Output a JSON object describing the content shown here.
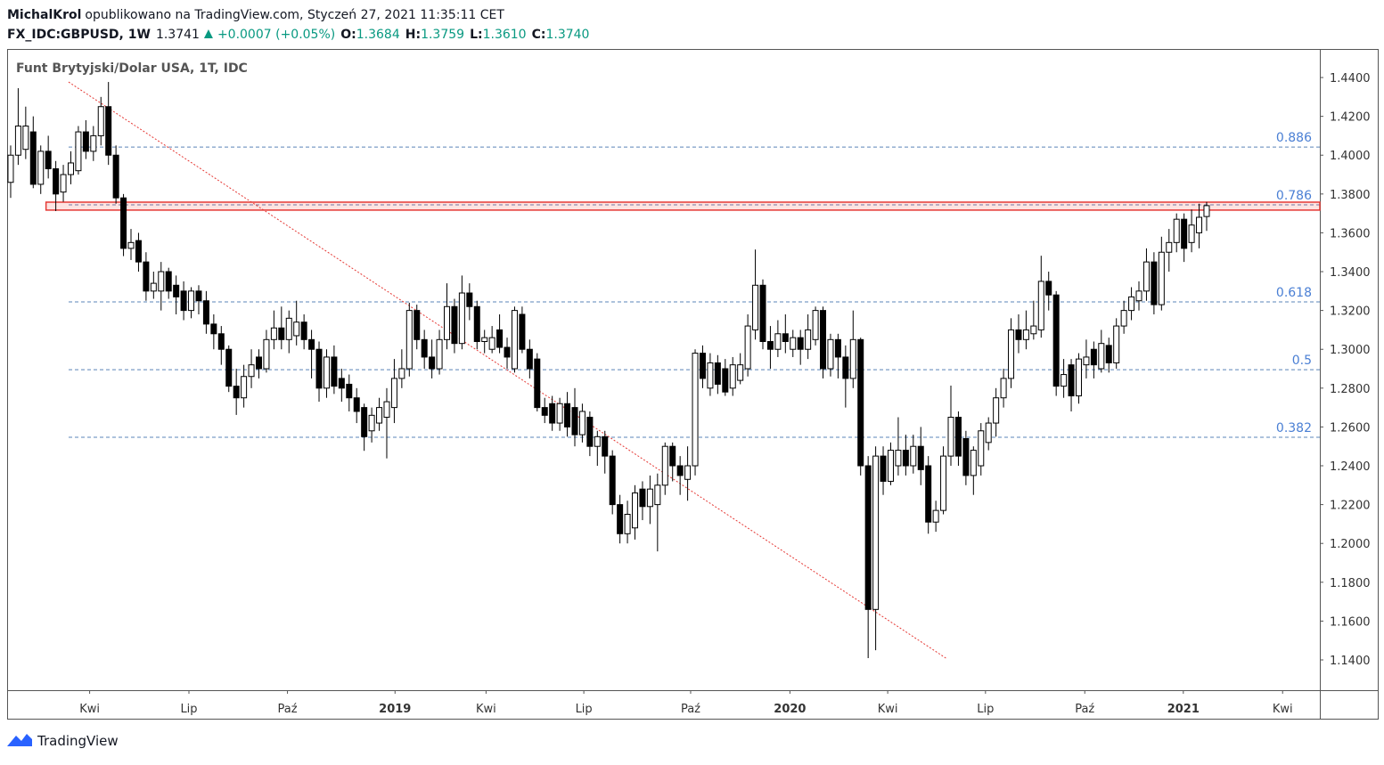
{
  "header": {
    "author": "MichalKrol",
    "published": "opublikowano na TradingView.com, Styczeń 27, 2021 11:35:11 CET",
    "symbol": "FX_IDC:GBPUSD, 1W",
    "last": "1.3741",
    "change": "+0.0007 (+0.05%)",
    "open_label": "O:",
    "open": "1.3684",
    "high_label": "H:",
    "high": "1.3759",
    "low_label": "L:",
    "low": "1.3610",
    "close_label": "C:",
    "close": "1.3740"
  },
  "footer": {
    "brand": "TradingView"
  },
  "chart_data": {
    "type": "candlestick",
    "title": "Funt Brytyjski/Dolar USA, 1T, IDC",
    "xlim": [
      -0.47,
      174.05
    ],
    "ylim": [
      1.1244,
      1.4547
    ],
    "xticks": [
      {
        "value": 10.5,
        "label": "Kwi"
      },
      {
        "value": 23.7,
        "label": "Lip"
      },
      {
        "value": 36.8,
        "label": "Paź"
      },
      {
        "value": 51.1,
        "label": "2019"
      },
      {
        "value": 63.2,
        "label": "Kwi"
      },
      {
        "value": 76.2,
        "label": "Lip"
      },
      {
        "value": 90.4,
        "label": "Paź"
      },
      {
        "value": 103.6,
        "label": "2020"
      },
      {
        "value": 116.6,
        "label": "Kwi"
      },
      {
        "value": 129.6,
        "label": "Lip"
      },
      {
        "value": 142.8,
        "label": "Paź"
      },
      {
        "value": 155.9,
        "label": "2021"
      },
      {
        "value": 169.1,
        "label": "Kwi"
      }
    ],
    "yticks": [
      {
        "value": 1.14,
        "label": "1.1400"
      },
      {
        "value": 1.16,
        "label": "1.1600"
      },
      {
        "value": 1.18,
        "label": "1.1800"
      },
      {
        "value": 1.2,
        "label": "1.2000"
      },
      {
        "value": 1.22,
        "label": "1.2200"
      },
      {
        "value": 1.24,
        "label": "1.2400"
      },
      {
        "value": 1.26,
        "label": "1.2600"
      },
      {
        "value": 1.28,
        "label": "1.2800"
      },
      {
        "value": 1.3,
        "label": "1.3000"
      },
      {
        "value": 1.32,
        "label": "1.3200"
      },
      {
        "value": 1.34,
        "label": "1.3400"
      },
      {
        "value": 1.36,
        "label": "1.3600"
      },
      {
        "value": 1.38,
        "label": "1.3800"
      },
      {
        "value": 1.4,
        "label": "1.4000"
      },
      {
        "value": 1.42,
        "label": "1.4200"
      },
      {
        "value": 1.44,
        "label": "1.4400"
      }
    ],
    "up_color": "#ffffff",
    "down_color": "#000000",
    "fib_levels": [
      {
        "ratio": "0.886",
        "price": 1.4042
      },
      {
        "ratio": "0.786",
        "price": 1.3744
      },
      {
        "ratio": "0.618",
        "price": 1.3244
      },
      {
        "ratio": "0.5",
        "price": 1.2895
      },
      {
        "ratio": "0.382",
        "price": 1.2547
      }
    ],
    "zone": {
      "x_start": 4.7,
      "top": 1.3758,
      "bottom": 1.3717
    },
    "trendline": {
      "x": [
        7.7,
        124.5
      ],
      "y": [
        1.4377,
        1.1405
      ]
    },
    "ohlc": [
      [
        1.386,
        1.405,
        1.378,
        1.4
      ],
      [
        1.4,
        1.4345,
        1.395,
        1.415
      ],
      [
        1.403,
        1.425,
        1.398,
        1.415
      ],
      [
        1.412,
        1.42,
        1.383,
        1.385
      ],
      [
        1.385,
        1.405,
        1.38,
        1.402
      ],
      [
        1.402,
        1.41,
        1.388,
        1.393
      ],
      [
        1.393,
        1.397,
        1.3712,
        1.38
      ],
      [
        1.381,
        1.395,
        1.376,
        1.39
      ],
      [
        1.39,
        1.402,
        1.385,
        1.396
      ],
      [
        1.392,
        1.415,
        1.39,
        1.412
      ],
      [
        1.412,
        1.418,
        1.398,
        1.402
      ],
      [
        1.402,
        1.415,
        1.397,
        1.41
      ],
      [
        1.41,
        1.43,
        1.405,
        1.425
      ],
      [
        1.425,
        1.4377,
        1.395,
        1.4
      ],
      [
        1.4,
        1.405,
        1.375,
        1.378
      ],
      [
        1.378,
        1.38,
        1.348,
        1.352
      ],
      [
        1.352,
        1.362,
        1.346,
        1.355
      ],
      [
        1.356,
        1.36,
        1.34,
        1.345
      ],
      [
        1.345,
        1.35,
        1.325,
        1.33
      ],
      [
        1.33,
        1.34,
        1.326,
        1.334
      ],
      [
        1.33,
        1.345,
        1.32,
        1.34
      ],
      [
        1.34,
        1.342,
        1.326,
        1.33
      ],
      [
        1.333,
        1.338,
        1.318,
        1.327
      ],
      [
        1.33,
        1.335,
        1.315,
        1.32
      ],
      [
        1.32,
        1.332,
        1.316,
        1.33
      ],
      [
        1.33,
        1.333,
        1.318,
        1.325
      ],
      [
        1.325,
        1.33,
        1.308,
        1.313
      ],
      [
        1.313,
        1.318,
        1.3,
        1.308
      ],
      [
        1.308,
        1.312,
        1.292,
        1.3
      ],
      [
        1.3,
        1.302,
        1.278,
        1.281
      ],
      [
        1.281,
        1.29,
        1.2662,
        1.275
      ],
      [
        1.275,
        1.292,
        1.27,
        1.286
      ],
      [
        1.286,
        1.3,
        1.28,
        1.292
      ],
      [
        1.296,
        1.3,
        1.285,
        1.29
      ],
      [
        1.29,
        1.31,
        1.288,
        1.305
      ],
      [
        1.305,
        1.32,
        1.3,
        1.311
      ],
      [
        1.311,
        1.322,
        1.3,
        1.305
      ],
      [
        1.305,
        1.32,
        1.298,
        1.316
      ],
      [
        1.307,
        1.325,
        1.302,
        1.314
      ],
      [
        1.314,
        1.318,
        1.3,
        1.305
      ],
      [
        1.305,
        1.31,
        1.285,
        1.3
      ],
      [
        1.3,
        1.304,
        1.273,
        1.28
      ],
      [
        1.28,
        1.3,
        1.275,
        1.296
      ],
      [
        1.296,
        1.302,
        1.277,
        1.281
      ],
      [
        1.285,
        1.29,
        1.273,
        1.28
      ],
      [
        1.282,
        1.287,
        1.268,
        1.275
      ],
      [
        1.275,
        1.28,
        1.262,
        1.268
      ],
      [
        1.27,
        1.272,
        1.2477,
        1.255
      ],
      [
        1.258,
        1.27,
        1.252,
        1.266
      ],
      [
        1.262,
        1.275,
        1.258,
        1.27
      ],
      [
        1.265,
        1.28,
        1.2438,
        1.273
      ],
      [
        1.27,
        1.295,
        1.262,
        1.285
      ],
      [
        1.285,
        1.3,
        1.28,
        1.29
      ],
      [
        1.29,
        1.324,
        1.286,
        1.32
      ],
      [
        1.32,
        1.323,
        1.3,
        1.305
      ],
      [
        1.305,
        1.31,
        1.29,
        1.296
      ],
      [
        1.296,
        1.305,
        1.285,
        1.29
      ],
      [
        1.29,
        1.31,
        1.287,
        1.305
      ],
      [
        1.305,
        1.334,
        1.3,
        1.322
      ],
      [
        1.322,
        1.326,
        1.298,
        1.303
      ],
      [
        1.303,
        1.338,
        1.3,
        1.329
      ],
      [
        1.329,
        1.334,
        1.315,
        1.322
      ],
      [
        1.322,
        1.325,
        1.3,
        1.304
      ],
      [
        1.304,
        1.31,
        1.298,
        1.306
      ],
      [
        1.3,
        1.312,
        1.298,
        1.306
      ],
      [
        1.31,
        1.318,
        1.298,
        1.301
      ],
      [
        1.301,
        1.306,
        1.29,
        1.296
      ],
      [
        1.29,
        1.322,
        1.288,
        1.32
      ],
      [
        1.318,
        1.322,
        1.298,
        1.3
      ],
      [
        1.3,
        1.305,
        1.285,
        1.29
      ],
      [
        1.295,
        1.298,
        1.268,
        1.27
      ],
      [
        1.27,
        1.275,
        1.262,
        1.266
      ],
      [
        1.272,
        1.276,
        1.258,
        1.262
      ],
      [
        1.262,
        1.275,
        1.258,
        1.272
      ],
      [
        1.272,
        1.278,
        1.255,
        1.26
      ],
      [
        1.27,
        1.28,
        1.25,
        1.256
      ],
      [
        1.256,
        1.272,
        1.252,
        1.268
      ],
      [
        1.265,
        1.268,
        1.245,
        1.25
      ],
      [
        1.25,
        1.258,
        1.24,
        1.255
      ],
      [
        1.255,
        1.258,
        1.236,
        1.245
      ],
      [
        1.245,
        1.248,
        1.215,
        1.22
      ],
      [
        1.22,
        1.225,
        1.2,
        1.205
      ],
      [
        1.205,
        1.222,
        1.2,
        1.215
      ],
      [
        1.208,
        1.23,
        1.202,
        1.226
      ],
      [
        1.228,
        1.232,
        1.212,
        1.219
      ],
      [
        1.219,
        1.235,
        1.21,
        1.228
      ],
      [
        1.22,
        1.236,
        1.1959,
        1.23
      ],
      [
        1.23,
        1.252,
        1.225,
        1.25
      ],
      [
        1.25,
        1.252,
        1.232,
        1.24
      ],
      [
        1.24,
        1.245,
        1.225,
        1.235
      ],
      [
        1.233,
        1.25,
        1.222,
        1.24
      ],
      [
        1.24,
        1.3,
        1.235,
        1.298
      ],
      [
        1.298,
        1.302,
        1.28,
        1.285
      ],
      [
        1.28,
        1.298,
        1.276,
        1.293
      ],
      [
        1.293,
        1.297,
        1.277,
        1.282
      ],
      [
        1.29,
        1.295,
        1.276,
        1.278
      ],
      [
        1.28,
        1.296,
        1.276,
        1.292
      ],
      [
        1.284,
        1.298,
        1.282,
        1.292
      ],
      [
        1.29,
        1.318,
        1.286,
        1.312
      ],
      [
        1.31,
        1.3514,
        1.305,
        1.333
      ],
      [
        1.333,
        1.336,
        1.3,
        1.304
      ],
      [
        1.304,
        1.312,
        1.29,
        1.3
      ],
      [
        1.3,
        1.315,
        1.296,
        1.308
      ],
      [
        1.308,
        1.318,
        1.298,
        1.304
      ],
      [
        1.3,
        1.31,
        1.296,
        1.306
      ],
      [
        1.306,
        1.31,
        1.292,
        1.3
      ],
      [
        1.3,
        1.318,
        1.295,
        1.31
      ],
      [
        1.305,
        1.322,
        1.302,
        1.32
      ],
      [
        1.32,
        1.322,
        1.285,
        1.29
      ],
      [
        1.29,
        1.308,
        1.286,
        1.305
      ],
      [
        1.305,
        1.308,
        1.285,
        1.296
      ],
      [
        1.296,
        1.302,
        1.27,
        1.285
      ],
      [
        1.285,
        1.32,
        1.28,
        1.305
      ],
      [
        1.305,
        1.306,
        1.235,
        1.24
      ],
      [
        1.24,
        1.245,
        1.1409,
        1.166
      ],
      [
        1.166,
        1.25,
        1.145,
        1.245
      ],
      [
        1.245,
        1.25,
        1.225,
        1.232
      ],
      [
        1.232,
        1.252,
        1.23,
        1.248
      ],
      [
        1.24,
        1.265,
        1.235,
        1.248
      ],
      [
        1.248,
        1.256,
        1.235,
        1.24
      ],
      [
        1.24,
        1.256,
        1.236,
        1.25
      ],
      [
        1.25,
        1.26,
        1.23,
        1.238
      ],
      [
        1.24,
        1.245,
        1.205,
        1.211
      ],
      [
        1.211,
        1.222,
        1.206,
        1.217
      ],
      [
        1.217,
        1.25,
        1.215,
        1.245
      ],
      [
        1.245,
        1.2813,
        1.24,
        1.265
      ],
      [
        1.265,
        1.268,
        1.24,
        1.245
      ],
      [
        1.254,
        1.258,
        1.23,
        1.235
      ],
      [
        1.235,
        1.25,
        1.225,
        1.248
      ],
      [
        1.24,
        1.262,
        1.235,
        1.258
      ],
      [
        1.252,
        1.265,
        1.248,
        1.262
      ],
      [
        1.262,
        1.28,
        1.255,
        1.275
      ],
      [
        1.275,
        1.29,
        1.27,
        1.285
      ],
      [
        1.285,
        1.316,
        1.28,
        1.31
      ],
      [
        1.31,
        1.318,
        1.298,
        1.305
      ],
      [
        1.305,
        1.32,
        1.3,
        1.31
      ],
      [
        1.308,
        1.325,
        1.305,
        1.312
      ],
      [
        1.31,
        1.3482,
        1.306,
        1.335
      ],
      [
        1.335,
        1.34,
        1.32,
        1.328
      ],
      [
        1.328,
        1.33,
        1.276,
        1.281
      ],
      [
        1.281,
        1.295,
        1.275,
        1.287
      ],
      [
        1.292,
        1.295,
        1.268,
        1.276
      ],
      [
        1.276,
        1.298,
        1.272,
        1.295
      ],
      [
        1.292,
        1.305,
        1.285,
        1.296
      ],
      [
        1.3,
        1.304,
        1.285,
        1.292
      ],
      [
        1.29,
        1.31,
        1.288,
        1.303
      ],
      [
        1.302,
        1.306,
        1.288,
        1.293
      ],
      [
        1.293,
        1.316,
        1.29,
        1.312
      ],
      [
        1.312,
        1.325,
        1.308,
        1.32
      ],
      [
        1.32,
        1.332,
        1.315,
        1.327
      ],
      [
        1.325,
        1.335,
        1.32,
        1.33
      ],
      [
        1.33,
        1.352,
        1.325,
        1.345
      ],
      [
        1.345,
        1.35,
        1.318,
        1.323
      ],
      [
        1.323,
        1.358,
        1.32,
        1.35
      ],
      [
        1.35,
        1.362,
        1.34,
        1.355
      ],
      [
        1.355,
        1.37,
        1.35,
        1.367
      ],
      [
        1.367,
        1.37,
        1.345,
        1.352
      ],
      [
        1.355,
        1.372,
        1.35,
        1.364
      ],
      [
        1.36,
        1.375,
        1.352,
        1.368
      ],
      [
        1.3684,
        1.3759,
        1.361,
        1.374
      ]
    ]
  }
}
